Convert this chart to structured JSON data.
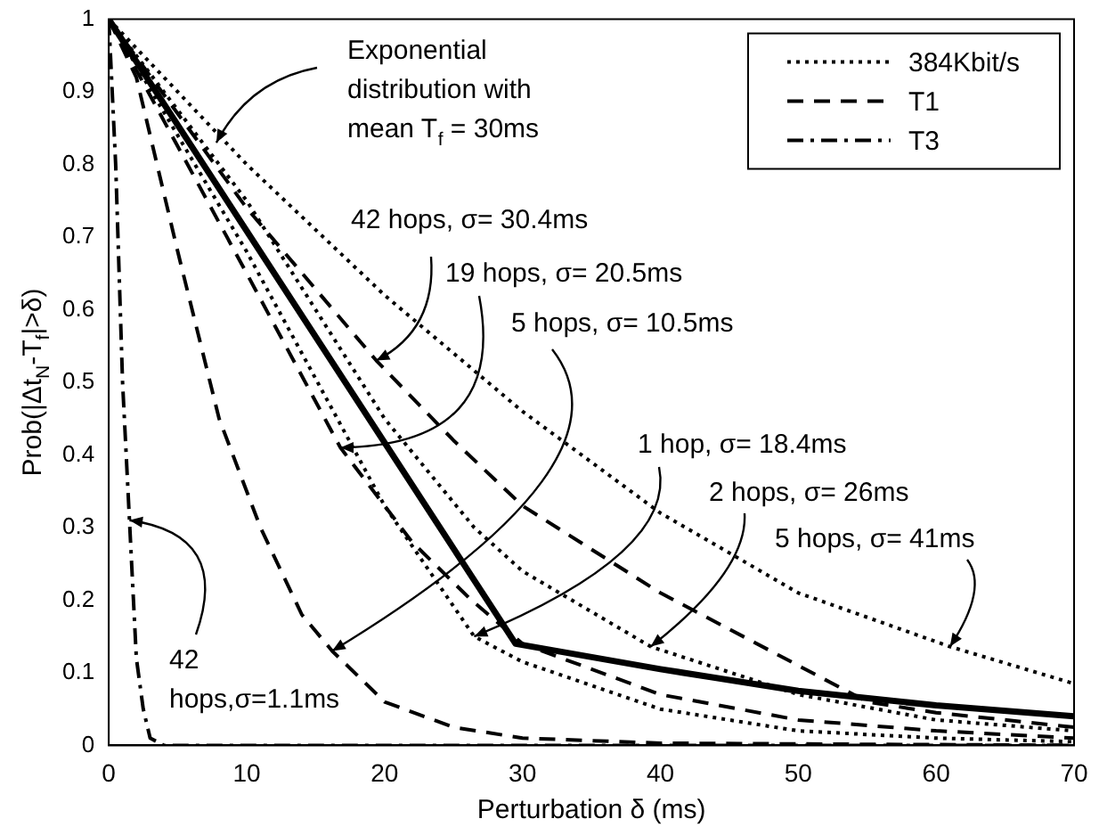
{
  "chart_data": {
    "type": "line",
    "xlabel": "Perturbation δ (ms)",
    "ylabel": "Prob(|Δt$_{N}$-T$_{f}$|>δ)",
    "xlim": [
      0,
      70
    ],
    "xticks": [
      0,
      10,
      20,
      30,
      40,
      50,
      60,
      70
    ],
    "ylim": [
      0,
      1
    ],
    "yticks": [
      0,
      0.1,
      0.2,
      0.3,
      0.4,
      0.5,
      0.6,
      0.7,
      0.8,
      0.9,
      1
    ],
    "grid": false,
    "legend": "top right",
    "marker": "none",
    "series": [
      {
        "color": "#000000",
        "line_style": "solid",
        "x": [
          0,
          29.5,
          40,
          50,
          60,
          70
        ],
        "values": [
          1,
          0.14,
          0.105,
          0.075,
          0.055,
          0.04
        ]
      },
      {
        "name": "384Kbit/s",
        "color": "#000000",
        "line_style": "dotted",
        "x": [
          0,
          10,
          20,
          30,
          40,
          50,
          61,
          70
        ],
        "values": [
          1,
          0.8,
          0.62,
          0.46,
          0.32,
          0.21,
          0.136,
          0.085
        ]
      },
      {
        "color": "#000000",
        "line_style": "dotted",
        "x": [
          0,
          10,
          20,
          26.5,
          30,
          39.3,
          50,
          60,
          70
        ],
        "values": [
          1,
          0.75,
          0.45,
          0.3,
          0.24,
          0.136,
          0.07,
          0.035,
          0.02
        ]
      },
      {
        "color": "#000000",
        "line_style": "dotted",
        "x": [
          0,
          10,
          20,
          26.5,
          30,
          40,
          50,
          60,
          70
        ],
        "values": [
          1,
          0.68,
          0.33,
          0.15,
          0.115,
          0.05,
          0.02,
          0.01,
          0.005
        ]
      },
      {
        "name": "T1",
        "color": "#000000",
        "line_style": "dashed",
        "x": [
          0,
          10,
          19.4,
          25,
          30,
          40,
          50,
          55,
          60,
          70
        ],
        "values": [
          1,
          0.74,
          0.53,
          0.42,
          0.33,
          0.21,
          0.11,
          0.06,
          0.045,
          0.025
        ]
      },
      {
        "color": "#000000",
        "line_style": "dashed",
        "x": [
          0,
          10,
          16.8,
          22,
          26.3,
          30,
          40,
          50,
          60,
          70
        ],
        "values": [
          1,
          0.65,
          0.41,
          0.28,
          0.2,
          0.14,
          0.07,
          0.035,
          0.02,
          0.01
        ]
      },
      {
        "color": "#000000",
        "line_style": "dashed",
        "x": [
          0,
          2,
          5,
          8,
          11,
          14,
          16.2,
          20,
          25,
          30,
          40,
          70
        ],
        "values": [
          1,
          0.92,
          0.68,
          0.45,
          0.3,
          0.18,
          0.13,
          0.06,
          0.025,
          0.01,
          0.003,
          0
        ]
      },
      {
        "name": "T3",
        "color": "#000000",
        "line_style": "dashdot",
        "x": [
          0,
          0.5,
          1,
          1.5,
          2,
          2.5,
          3,
          4,
          70
        ],
        "values": [
          1,
          0.8,
          0.5,
          0.31,
          0.12,
          0.05,
          0.01,
          0,
          0
        ]
      }
    ],
    "annotations": [
      {
        "text": "Exponential distribution with mean T$_{f}$ = 30ms",
        "x": 7.8,
        "y": 0.83
      },
      {
        "text": "42 hops, σ= 30.4ms",
        "x": 19.4,
        "y": 0.53
      },
      {
        "text": "19 hops, σ= 20.5ms",
        "x": 16.8,
        "y": 0.41
      },
      {
        "text": "5 hops, σ= 10.5ms",
        "x": 16.2,
        "y": 0.13
      },
      {
        "text": "1 hop, σ= 18.4ms",
        "x": 26.5,
        "y": 0.15
      },
      {
        "text": "2 hops, σ= 26ms",
        "x": 39.3,
        "y": 0.136
      },
      {
        "text": "5 hops, σ= 41ms",
        "x": 61,
        "y": 0.136
      },
      {
        "text": "42 hops,σ=1.1ms",
        "x": 1.5,
        "y": 0.31
      }
    ]
  }
}
